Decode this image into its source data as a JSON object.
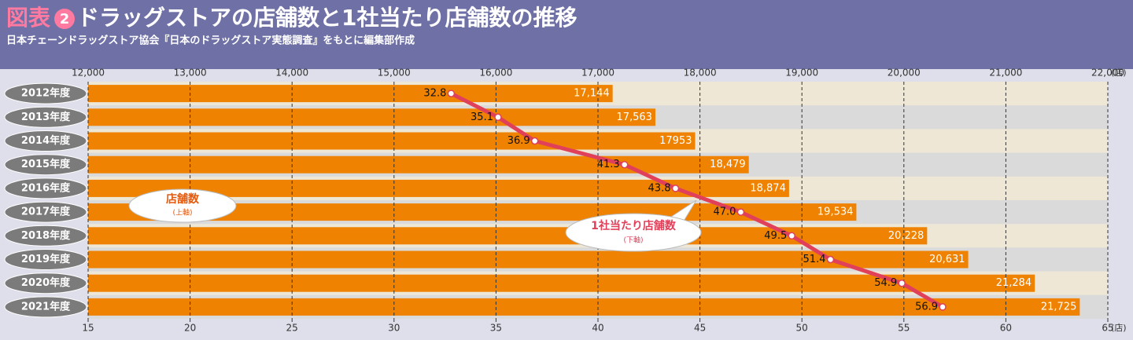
{
  "chart_data": {
    "type": "bar",
    "title_prefix": "図表",
    "title_number": "2",
    "title": "ドラッグストアの店舗数と1社当たり店舗数の推移",
    "subtitle": "日本チェーンドラッグストア協会『日本のドラッグストア実態調査』をもとに編集部作成",
    "categories": [
      "2012年度",
      "2013年度",
      "2014年度",
      "2015年度",
      "2016年度",
      "2017年度",
      "2018年度",
      "2019年度",
      "2020年度",
      "2021年度"
    ],
    "series": [
      {
        "name": "店舗数",
        "axis_note": "(上軸)",
        "color": "#ef8200",
        "axis": "x",
        "values": [
          17144,
          17563,
          17953,
          18479,
          18874,
          19534,
          20228,
          20631,
          21284,
          21725
        ],
        "value_labels": [
          "17,144",
          "17,563",
          "17953",
          "18,479",
          "18,874",
          "19,534",
          "20,228",
          "20,631",
          "21,284",
          "21,725"
        ]
      },
      {
        "name": "1社当たり店舗数",
        "axis_note": "(下軸)",
        "color": "#e0405a",
        "axis": "x2",
        "type": "line",
        "values": [
          32.8,
          35.1,
          36.9,
          41.3,
          43.8,
          47.0,
          49.5,
          51.4,
          54.9,
          56.9
        ],
        "value_labels": [
          "32.8",
          "35.1",
          "36.9",
          "41.3",
          "43.8",
          "47.0",
          "49.5",
          "51.4",
          "54.9",
          "56.9"
        ]
      }
    ],
    "xlim": [
      12000,
      22000
    ],
    "xticks": [
      {
        "value": 12000,
        "label": "12,000"
      },
      {
        "value": 13000,
        "label": "13,000"
      },
      {
        "value": 14000,
        "label": "14,000"
      },
      {
        "value": 15000,
        "label": "15,000"
      },
      {
        "value": 16000,
        "label": "16,000"
      },
      {
        "value": 17000,
        "label": "17,000"
      },
      {
        "value": 18000,
        "label": "18,000"
      },
      {
        "value": 19000,
        "label": "19,000"
      },
      {
        "value": 20000,
        "label": "20,000"
      },
      {
        "value": 21000,
        "label": "21,000"
      },
      {
        "value": 22000,
        "label": "22,000"
      }
    ],
    "x_unit": "(店)",
    "x2lim": [
      15,
      65
    ],
    "x2ticks": [
      15,
      20,
      25,
      30,
      35,
      40,
      45,
      50,
      55,
      60,
      65
    ],
    "x2_unit": "(店)",
    "grid": true
  }
}
